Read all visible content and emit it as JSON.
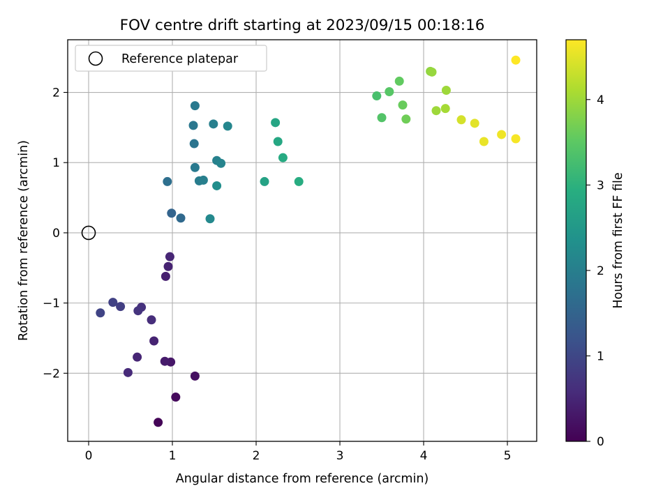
{
  "chart_data": {
    "type": "scatter",
    "title": "FOV centre drift starting at 2023/09/15 00:18:16",
    "xlabel": "Angular distance from reference (arcmin)",
    "ylabel": "Rotation from reference (arcmin)",
    "xlim": [
      -0.25,
      5.35
    ],
    "ylim": [
      -2.97,
      2.75
    ],
    "xticks": [
      0,
      1,
      2,
      3,
      4,
      5
    ],
    "yticks": [
      -2,
      -1,
      0,
      1,
      2
    ],
    "xtick_labels": [
      "0",
      "1",
      "2",
      "3",
      "4",
      "5"
    ],
    "ytick_labels": [
      "−2",
      "−1",
      "0",
      "1",
      "2"
    ],
    "grid": true,
    "legend": {
      "placement": "top-left",
      "entries": [
        "Reference platepar"
      ]
    },
    "reference_point": {
      "x": 0,
      "y": 0,
      "name": "Reference platepar"
    },
    "colorbar": {
      "label": "Hours from first FF file",
      "range": [
        0,
        4.7
      ],
      "ticks": [
        0,
        1,
        2,
        3,
        4
      ],
      "tick_labels": [
        "0",
        "1",
        "2",
        "3",
        "4"
      ],
      "colormap": "viridis"
    },
    "points": [
      {
        "x": 0.83,
        "y": -2.7,
        "c": 0.05
      },
      {
        "x": 1.04,
        "y": -2.34,
        "c": 0.12
      },
      {
        "x": 1.27,
        "y": -2.04,
        "c": 0.2
      },
      {
        "x": 0.98,
        "y": -1.84,
        "c": 0.3
      },
      {
        "x": 0.91,
        "y": -1.83,
        "c": 0.35
      },
      {
        "x": 0.78,
        "y": -1.54,
        "c": 0.45
      },
      {
        "x": 0.58,
        "y": -1.77,
        "c": 0.5
      },
      {
        "x": 0.47,
        "y": -1.99,
        "c": 0.55
      },
      {
        "x": 0.75,
        "y": -1.24,
        "c": 0.6
      },
      {
        "x": 0.63,
        "y": -1.06,
        "c": 0.65
      },
      {
        "x": 0.59,
        "y": -1.11,
        "c": 0.7
      },
      {
        "x": 0.92,
        "y": -0.62,
        "c": 0.4
      },
      {
        "x": 0.95,
        "y": -0.48,
        "c": 0.45
      },
      {
        "x": 0.97,
        "y": -0.34,
        "c": 0.5
      },
      {
        "x": 0.38,
        "y": -1.05,
        "c": 0.85
      },
      {
        "x": 0.29,
        "y": -0.99,
        "c": 0.9
      },
      {
        "x": 0.14,
        "y": -1.14,
        "c": 0.95
      },
      {
        "x": 0.99,
        "y": 0.28,
        "c": 1.5
      },
      {
        "x": 1.1,
        "y": 0.21,
        "c": 1.6
      },
      {
        "x": 0.94,
        "y": 0.73,
        "c": 1.7
      },
      {
        "x": 1.45,
        "y": 0.2,
        "c": 2.2
      },
      {
        "x": 1.27,
        "y": 0.93,
        "c": 1.9
      },
      {
        "x": 1.32,
        "y": 0.74,
        "c": 1.95
      },
      {
        "x": 1.37,
        "y": 0.75,
        "c": 2.0
      },
      {
        "x": 1.53,
        "y": 0.67,
        "c": 2.3
      },
      {
        "x": 1.26,
        "y": 1.27,
        "c": 1.8
      },
      {
        "x": 1.25,
        "y": 1.53,
        "c": 1.85
      },
      {
        "x": 1.27,
        "y": 1.81,
        "c": 1.9
      },
      {
        "x": 1.49,
        "y": 1.55,
        "c": 2.0
      },
      {
        "x": 1.53,
        "y": 1.03,
        "c": 2.05
      },
      {
        "x": 1.58,
        "y": 0.99,
        "c": 2.1
      },
      {
        "x": 1.66,
        "y": 1.52,
        "c": 2.15
      },
      {
        "x": 2.1,
        "y": 0.73,
        "c": 2.7
      },
      {
        "x": 2.23,
        "y": 1.57,
        "c": 2.75
      },
      {
        "x": 2.26,
        "y": 1.3,
        "c": 2.8
      },
      {
        "x": 2.32,
        "y": 1.07,
        "c": 2.85
      },
      {
        "x": 2.51,
        "y": 0.73,
        "c": 2.9
      },
      {
        "x": 3.44,
        "y": 1.95,
        "c": 3.3
      },
      {
        "x": 3.5,
        "y": 1.64,
        "c": 3.4
      },
      {
        "x": 3.59,
        "y": 2.01,
        "c": 3.45
      },
      {
        "x": 3.71,
        "y": 2.16,
        "c": 3.55
      },
      {
        "x": 3.75,
        "y": 1.82,
        "c": 3.6
      },
      {
        "x": 3.79,
        "y": 1.62,
        "c": 3.65
      },
      {
        "x": 4.08,
        "y": 2.3,
        "c": 3.9
      },
      {
        "x": 4.1,
        "y": 2.29,
        "c": 3.95
      },
      {
        "x": 4.15,
        "y": 1.74,
        "c": 4.0
      },
      {
        "x": 4.26,
        "y": 1.77,
        "c": 4.05
      },
      {
        "x": 4.27,
        "y": 2.03,
        "c": 4.0
      },
      {
        "x": 4.45,
        "y": 1.61,
        "c": 4.4
      },
      {
        "x": 4.61,
        "y": 1.56,
        "c": 4.5
      },
      {
        "x": 4.72,
        "y": 1.3,
        "c": 4.55
      },
      {
        "x": 4.93,
        "y": 1.4,
        "c": 4.6
      },
      {
        "x": 5.1,
        "y": 1.34,
        "c": 4.65
      },
      {
        "x": 5.1,
        "y": 2.46,
        "c": 4.7
      }
    ]
  }
}
